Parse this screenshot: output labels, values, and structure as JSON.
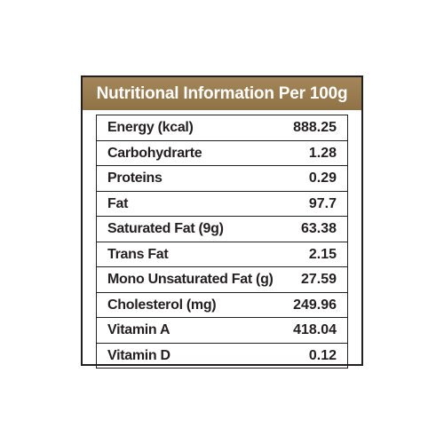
{
  "panel": {
    "title": "Nutritional Information Per 100g",
    "header_color": "#9a7d50",
    "border_color": "#231f20"
  },
  "rows": [
    {
      "name": "Energy (kcal)",
      "value": "888.25"
    },
    {
      "name": "Carbohydrarte",
      "value": "1.28"
    },
    {
      "name": "Proteins",
      "value": "0.29"
    },
    {
      "name": "Fat",
      "value": "97.7"
    },
    {
      "name": "Saturated Fat (9g)",
      "value": "63.38"
    },
    {
      "name": "Trans Fat",
      "value": "2.15"
    },
    {
      "name": "Mono Unsaturated Fat (g)",
      "value": "27.59"
    },
    {
      "name": "Cholesterol (mg)",
      "value": "249.96"
    },
    {
      "name": "Vitamin A",
      "value": "418.04"
    },
    {
      "name": "Vitamin D",
      "value": "0.12"
    }
  ]
}
